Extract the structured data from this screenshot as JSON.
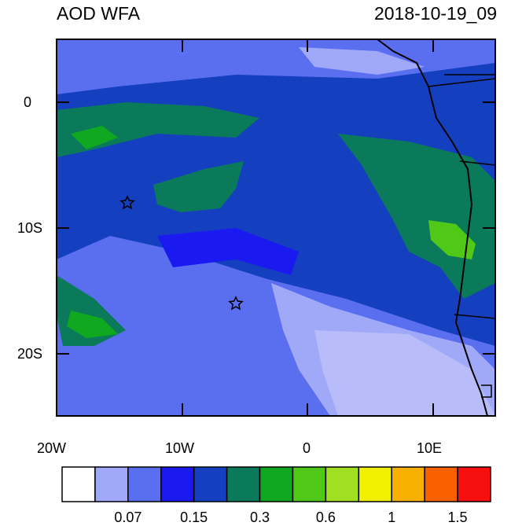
{
  "title": "AOD WFA",
  "timestamp": "2018-10-19_09",
  "map": {
    "lon_range": [
      -20,
      15
    ],
    "lat_range": [
      -25,
      5
    ],
    "x_tick_labels": [
      "20W",
      "10W",
      "0",
      "10E"
    ],
    "y_tick_labels": [
      "0",
      "10S",
      "20S"
    ],
    "station_markers": [
      {
        "lon": -14.4,
        "lat": -8.0,
        "symbol": "star"
      },
      {
        "lon": -5.7,
        "lat": -16.0,
        "symbol": "star"
      }
    ]
  },
  "colorbar": {
    "colors": [
      "#ffffff",
      "#a0a8f8",
      "#5a6ef0",
      "#1a1af0",
      "#1440c0",
      "#0a7a5a",
      "#10a820",
      "#50c818",
      "#a0e020",
      "#f0f000",
      "#f8b000",
      "#f86000",
      "#f81010"
    ],
    "labels": [
      "0.07",
      "0.15",
      "0.3",
      "0.6",
      "1",
      "1.5"
    ]
  }
}
